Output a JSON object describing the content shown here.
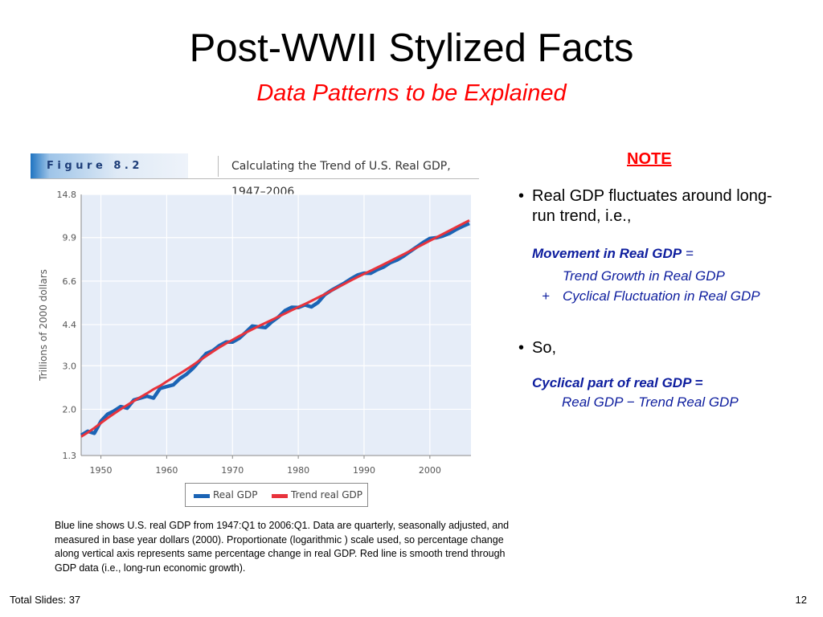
{
  "slide": {
    "title": "Post-WWII Stylized Facts",
    "subtitle": "Data Patterns to be Explained"
  },
  "figure": {
    "label": "F i g u r e   8 . 2",
    "title": "Calculating the Trend of U.S. Real GDP, 1947–2006",
    "caption": "Blue line shows U.S. real GDP from 1947:Q1 to 2006:Q1.  Data are quarterly, seasonally adjusted, and measured in base year dollars (2000).  Proportionate (logarithmic ) scale used, so percentage change along vertical axis represents same percentage change in real GDP.  Red line is smooth trend through GDP data (i.e., long-run economic growth)."
  },
  "chart_data": {
    "type": "line",
    "title": "Calculating the Trend of U.S. Real GDP, 1947–2006",
    "ylabel": "Trillions of 2000 dollars",
    "xlabel": "",
    "y_scale": "log",
    "ylim": [
      1.3,
      14.8
    ],
    "xlim": [
      1947,
      2006.25
    ],
    "yticks": [
      "14.8",
      "9.9",
      "6.6",
      "4.4",
      "3.0",
      "2.0",
      "1.3"
    ],
    "ytick_values": [
      14.8,
      9.9,
      6.6,
      4.4,
      3.0,
      2.0,
      1.3
    ],
    "xticks": [
      "1950",
      "1960",
      "1970",
      "1980",
      "1990",
      "2000"
    ],
    "xtick_values": [
      1950,
      1960,
      1970,
      1980,
      1990,
      2000
    ],
    "grid": true,
    "colors": {
      "plot_bg": "#e6edf8",
      "grid": "#ffffff",
      "real": "#1b64b5",
      "trend": "#e8333c"
    },
    "series": [
      {
        "name": "Real GDP",
        "x": [
          1947,
          1948,
          1949,
          1950,
          1951,
          1952,
          1953,
          1954,
          1955,
          1956,
          1957,
          1958,
          1959,
          1960,
          1961,
          1962,
          1963,
          1964,
          1965,
          1966,
          1967,
          1968,
          1969,
          1970,
          1971,
          1972,
          1973,
          1974,
          1975,
          1976,
          1977,
          1978,
          1979,
          1980,
          1981,
          1982,
          1983,
          1984,
          1985,
          1986,
          1987,
          1988,
          1989,
          1990,
          1991,
          1992,
          1993,
          1994,
          1995,
          1996,
          1997,
          1998,
          1999,
          2000,
          2001,
          2002,
          2003,
          2004,
          2005,
          2006
        ],
        "values": [
          1.57,
          1.63,
          1.6,
          1.79,
          1.91,
          1.97,
          2.05,
          2.02,
          2.18,
          2.22,
          2.26,
          2.22,
          2.43,
          2.47,
          2.51,
          2.66,
          2.77,
          2.93,
          3.14,
          3.36,
          3.45,
          3.62,
          3.74,
          3.74,
          3.87,
          4.09,
          4.34,
          4.31,
          4.28,
          4.52,
          4.73,
          5.02,
          5.17,
          5.16,
          5.29,
          5.19,
          5.41,
          5.81,
          6.05,
          6.26,
          6.48,
          6.74,
          6.98,
          7.11,
          7.1,
          7.34,
          7.53,
          7.84,
          8.03,
          8.33,
          8.7,
          9.07,
          9.47,
          9.82,
          9.89,
          10.05,
          10.3,
          10.68,
          11.0,
          11.3
        ]
      },
      {
        "name": "Trend real GDP",
        "x": [
          1947,
          1948,
          1949,
          1950,
          1951,
          1952,
          1953,
          1954,
          1955,
          1956,
          1957,
          1958,
          1959,
          1960,
          1961,
          1962,
          1963,
          1964,
          1965,
          1966,
          1967,
          1968,
          1969,
          1970,
          1971,
          1972,
          1973,
          1974,
          1975,
          1976,
          1977,
          1978,
          1979,
          1980,
          1981,
          1982,
          1983,
          1984,
          1985,
          1986,
          1987,
          1988,
          1989,
          1990,
          1991,
          1992,
          1993,
          1994,
          1995,
          1996,
          1997,
          1998,
          1999,
          2000,
          2001,
          2002,
          2003,
          2004,
          2005,
          2006
        ],
        "values": [
          1.55,
          1.61,
          1.68,
          1.76,
          1.84,
          1.92,
          2.0,
          2.08,
          2.16,
          2.24,
          2.32,
          2.41,
          2.49,
          2.59,
          2.69,
          2.79,
          2.9,
          3.02,
          3.15,
          3.28,
          3.42,
          3.56,
          3.69,
          3.82,
          3.95,
          4.08,
          4.21,
          4.34,
          4.47,
          4.6,
          4.74,
          4.88,
          5.03,
          5.18,
          5.33,
          5.49,
          5.66,
          5.84,
          6.03,
          6.23,
          6.43,
          6.64,
          6.85,
          7.06,
          7.27,
          7.49,
          7.72,
          7.96,
          8.21,
          8.47,
          8.74,
          9.02,
          9.31,
          9.61,
          9.92,
          10.24,
          10.57,
          10.91,
          11.26,
          11.62
        ]
      }
    ]
  },
  "legend": {
    "real_label": "Real GDP",
    "trend_label": "Trend real GDP"
  },
  "note": {
    "heading": "NOTE",
    "bullet1": "Real GDP fluctuates around long-run trend, i.e.,",
    "movement_label": "Movement in Real GDP",
    "equals": "=",
    "trend_growth": "Trend Growth in Real GDP",
    "plus": "+",
    "cyclical_fluct": "Cyclical Fluctuation in Real GDP",
    "bullet2": "So,",
    "cyclical_label": "Cyclical part of real GDP =",
    "cyclical_formula": "Real GDP − Trend Real GDP"
  },
  "footer": {
    "total_slides": "Total Slides: 37",
    "page": "12"
  }
}
